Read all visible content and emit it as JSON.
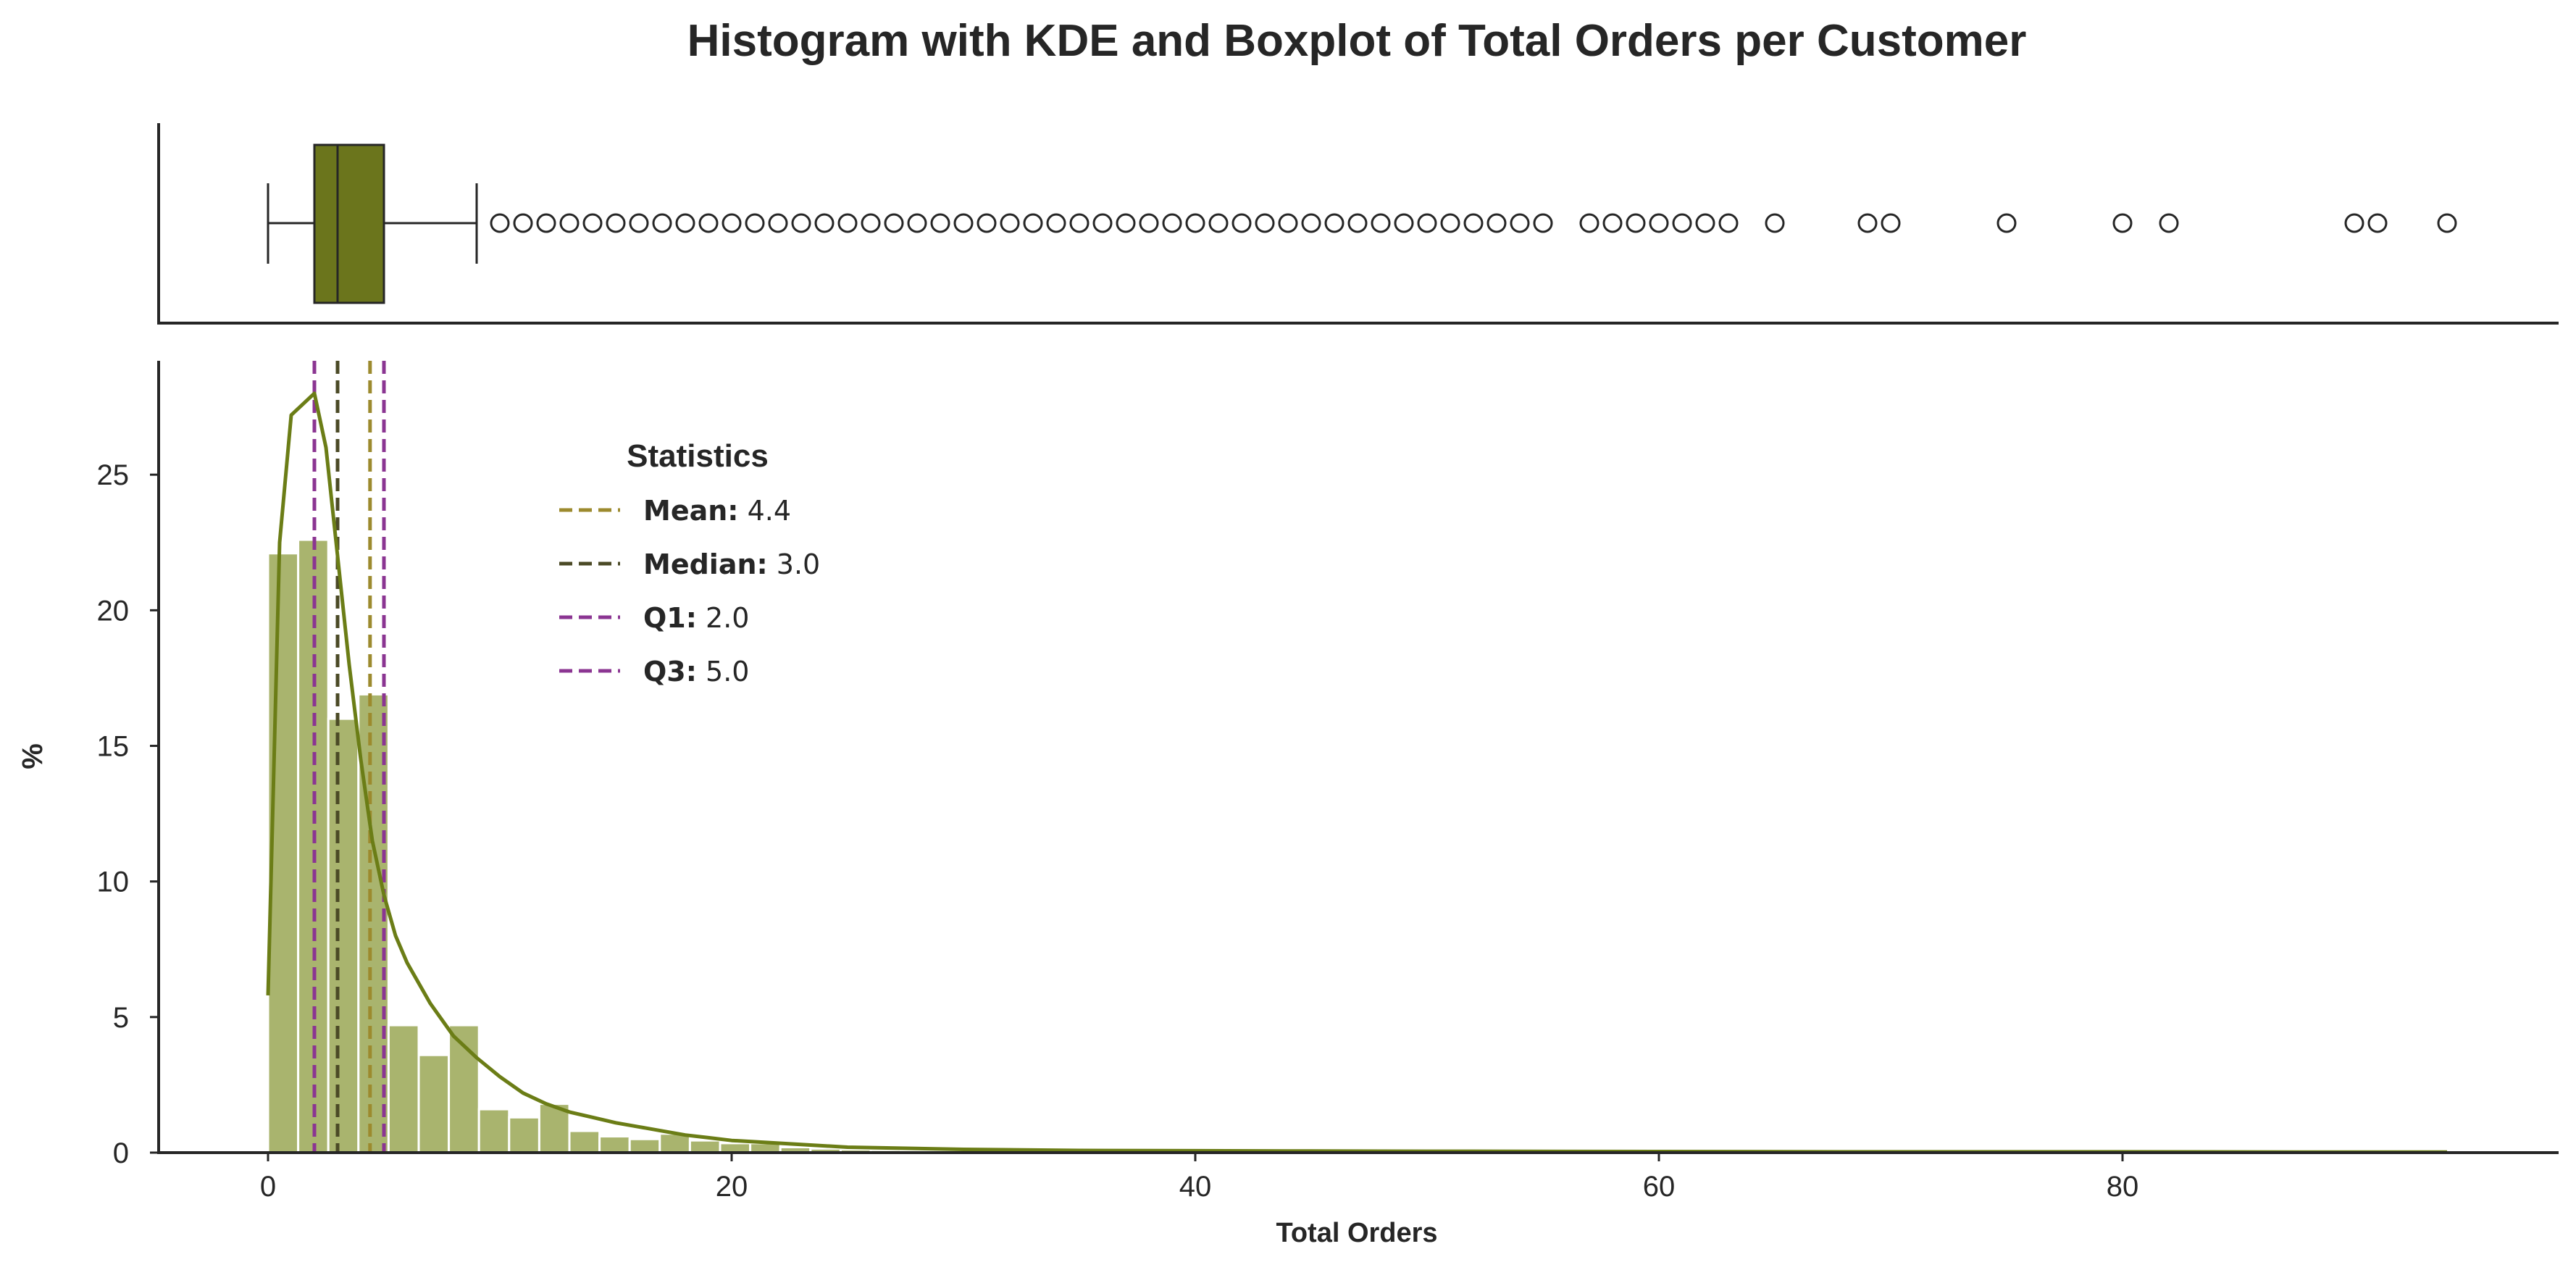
{
  "chart_data": {
    "type": "histogram",
    "title": "Histogram with KDE and Boxplot of Total Orders per Customer",
    "xlabel": "Total Orders",
    "ylabel": "%",
    "xlim": [
      -5,
      98.5
    ],
    "ylim": [
      0,
      29.2
    ],
    "xticks": [
      0,
      20,
      40,
      60,
      80
    ],
    "yticks": [
      0,
      5,
      10,
      15,
      20,
      25
    ],
    "grid": false,
    "colors": {
      "bar": "#a9b46e",
      "kde": "#6b7d16",
      "box": "#6b751c",
      "mean": "#9c8a2e",
      "median": "#4b4a26",
      "quartile": "#8b3592"
    },
    "histogram": {
      "bin_width": 1.3,
      "bins": [
        {
          "x0": 0.0,
          "value": 22.1
        },
        {
          "x0": 1.3,
          "value": 22.6
        },
        {
          "x0": 2.6,
          "value": 16.0
        },
        {
          "x0": 3.9,
          "value": 16.9
        },
        {
          "x0": 5.2,
          "value": 4.7
        },
        {
          "x0": 6.5,
          "value": 3.6
        },
        {
          "x0": 7.8,
          "value": 4.7
        },
        {
          "x0": 9.1,
          "value": 1.6
        },
        {
          "x0": 10.4,
          "value": 1.3
        },
        {
          "x0": 11.7,
          "value": 1.8
        },
        {
          "x0": 13.0,
          "value": 0.8
        },
        {
          "x0": 14.3,
          "value": 0.6
        },
        {
          "x0": 15.6,
          "value": 0.5
        },
        {
          "x0": 16.9,
          "value": 0.7
        },
        {
          "x0": 18.2,
          "value": 0.45
        },
        {
          "x0": 19.5,
          "value": 0.35
        },
        {
          "x0": 20.8,
          "value": 0.35
        },
        {
          "x0": 22.1,
          "value": 0.2
        },
        {
          "x0": 23.4,
          "value": 0.15
        },
        {
          "x0": 24.7,
          "value": 0.12
        },
        {
          "x0": 26.0,
          "value": 0.1
        },
        {
          "x0": 27.3,
          "value": 0.08
        },
        {
          "x0": 28.6,
          "value": 0.07
        },
        {
          "x0": 29.9,
          "value": 0.06
        },
        {
          "x0": 31.2,
          "value": 0.05
        },
        {
          "x0": 32.5,
          "value": 0.04
        },
        {
          "x0": 33.8,
          "value": 0.04
        },
        {
          "x0": 35.1,
          "value": 0.03
        },
        {
          "x0": 36.4,
          "value": 0.03
        },
        {
          "x0": 37.7,
          "value": 0.03
        },
        {
          "x0": 39.0,
          "value": 0.02
        },
        {
          "x0": 40.3,
          "value": 0.02
        },
        {
          "x0": 41.6,
          "value": 0.02
        },
        {
          "x0": 42.9,
          "value": 0.02
        },
        {
          "x0": 44.2,
          "value": 0.02
        },
        {
          "x0": 45.5,
          "value": 0.02
        }
      ]
    },
    "kde": {
      "x": [
        0,
        0.5,
        1.0,
        1.5,
        2.0,
        2.5,
        3.0,
        3.5,
        4.0,
        4.5,
        5.0,
        5.5,
        6.0,
        7.0,
        8.0,
        9.0,
        10.0,
        11.0,
        12.0,
        13.0,
        14.0,
        15.0,
        16.0,
        17.0,
        18.0,
        19.0,
        20.0,
        22.0,
        25.0,
        30.0,
        35.0,
        40.0,
        45.0,
        50.0,
        60.0,
        70.0,
        80.0,
        90.0,
        94.0
      ],
      "y": [
        5.8,
        22.5,
        27.2,
        27.6,
        28.0,
        26.0,
        22.0,
        18.0,
        14.5,
        11.5,
        9.5,
        8.0,
        7.0,
        5.5,
        4.3,
        3.5,
        2.8,
        2.2,
        1.8,
        1.5,
        1.3,
        1.1,
        0.95,
        0.8,
        0.65,
        0.55,
        0.45,
        0.35,
        0.2,
        0.12,
        0.08,
        0.07,
        0.06,
        0.05,
        0.04,
        0.03,
        0.03,
        0.02,
        0.02
      ]
    },
    "boxplot": {
      "whisker_low": 0,
      "q1": 2.0,
      "median": 3.0,
      "q3": 5.0,
      "whisker_high": 9.0,
      "outliers": [
        10,
        11,
        12,
        13,
        14,
        15,
        16,
        17,
        18,
        19,
        20,
        21,
        22,
        23,
        24,
        25,
        26,
        27,
        28,
        29,
        30,
        31,
        32,
        33,
        34,
        35,
        36,
        37,
        38,
        39,
        40,
        41,
        42,
        43,
        44,
        45,
        46,
        47,
        48,
        49,
        50,
        51,
        52,
        53,
        54,
        55,
        57,
        58,
        59,
        60,
        61,
        62,
        63,
        65,
        69,
        70,
        75,
        80,
        82,
        90,
        91,
        94
      ]
    },
    "reference_lines": [
      {
        "key": "mean",
        "label": "Mean",
        "value": 4.4,
        "display": "4.4"
      },
      {
        "key": "median",
        "label": "Median",
        "value": 3.0,
        "display": "3.0"
      },
      {
        "key": "q1",
        "label": "Q1",
        "value": 2.0,
        "display": "2.0"
      },
      {
        "key": "q3",
        "label": "Q3",
        "value": 5.0,
        "display": "5.0"
      }
    ],
    "legend": {
      "title": "Statistics",
      "placement": "upper-left"
    }
  }
}
